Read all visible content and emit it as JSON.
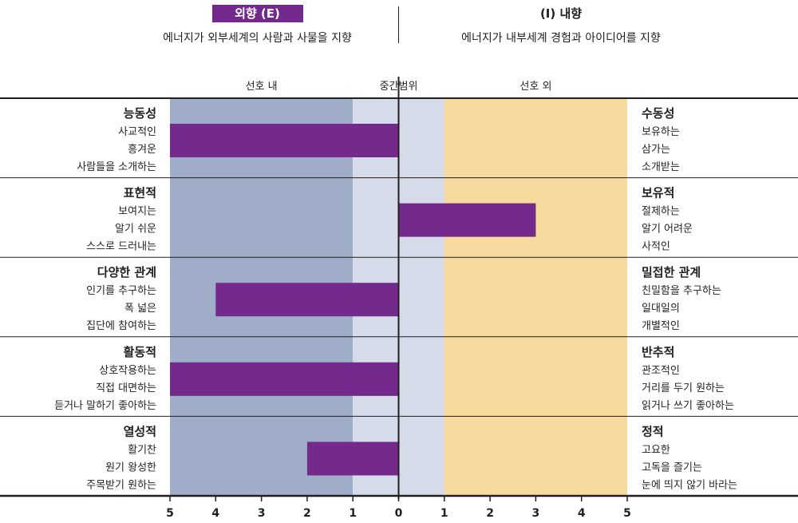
{
  "header": {
    "left": {
      "badge": "외향 (E)",
      "description": "에너지가 외부세계의 사람과 사물을 지향"
    },
    "right": {
      "label": "(I) 내향",
      "description": "에너지가 내부세계 경험과 아이디어를 지향"
    }
  },
  "zones": {
    "inner": "선호 내",
    "middle": "중간범위",
    "outer": "선호 외"
  },
  "colors": {
    "bar": "#732a8c",
    "inner_zone": "#9fadc8",
    "middle_zone": "#d5dbe8",
    "outer_zone": "#f7da9d",
    "rule": "#231f20"
  },
  "chart_data": {
    "type": "bar",
    "orientation": "horizontal",
    "xlim": [
      -5,
      5
    ],
    "x_ticks": [
      "5",
      "4",
      "3",
      "2",
      "1",
      "0",
      "1",
      "2",
      "3",
      "4",
      "5"
    ],
    "categories": [
      {
        "left_title": "능동성",
        "left_items": [
          "사교적인",
          "흥겨운",
          "사람들을 소개하는"
        ],
        "right_title": "수동성",
        "right_items": [
          "보유하는",
          "삼가는",
          "소개받는"
        ],
        "value": -5
      },
      {
        "left_title": "표현적",
        "left_items": [
          "보여지는",
          "알기 쉬운",
          "스스로 드러내는"
        ],
        "right_title": "보유적",
        "right_items": [
          "절제하는",
          "알기 어려운",
          "사적인"
        ],
        "value": 3
      },
      {
        "left_title": "다양한 관계",
        "left_items": [
          "인기를 추구하는",
          "폭 넓은",
          "집단에 참여하는"
        ],
        "right_title": "밀접한 관계",
        "right_items": [
          "친밀함을 추구하는",
          "일대일의",
          "개별적인"
        ],
        "value": -4
      },
      {
        "left_title": "활동적",
        "left_items": [
          "상호작용하는",
          "직접 대면하는",
          "듣거나 말하기 좋아하는"
        ],
        "right_title": "반추적",
        "right_items": [
          "관조적인",
          "거리를 두기 원하는",
          "읽거나 쓰기 좋아하는"
        ],
        "value": -5
      },
      {
        "left_title": "열성적",
        "left_items": [
          "활기찬",
          "원기 왕성한",
          "주목받기 원하는"
        ],
        "right_title": "정적",
        "right_items": [
          "고요한",
          "고독을 즐기는",
          "눈에 띄지 않기 바라는"
        ],
        "value": -2
      }
    ]
  }
}
